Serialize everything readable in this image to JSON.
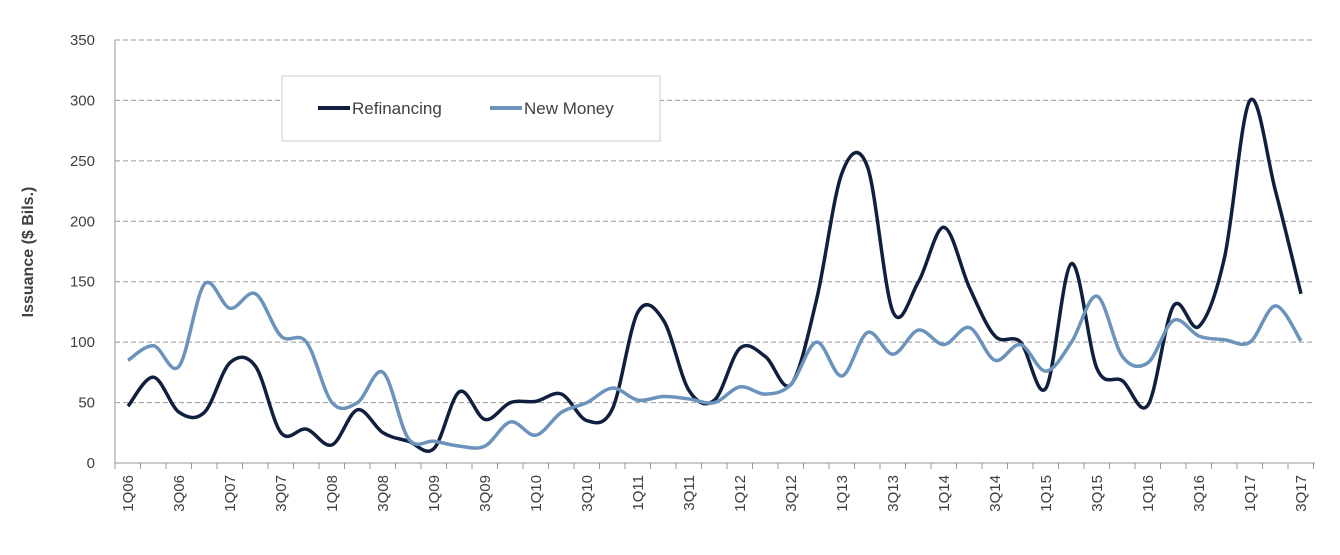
{
  "chart_data": {
    "type": "line",
    "title": "",
    "ylabel": "Issuance ($ Bils.)",
    "xlabel": "",
    "ylim": [
      0,
      350
    ],
    "yticks": [
      0,
      50,
      100,
      150,
      200,
      250,
      300,
      350
    ],
    "grid": true,
    "legend_placement": "top-left",
    "categories": [
      "1Q06",
      "2Q06",
      "3Q06",
      "4Q06",
      "1Q07",
      "2Q07",
      "3Q07",
      "4Q07",
      "1Q08",
      "2Q08",
      "3Q08",
      "4Q08",
      "1Q09",
      "2Q09",
      "3Q09",
      "4Q09",
      "1Q10",
      "2Q10",
      "3Q10",
      "4Q10",
      "1Q11",
      "2Q11",
      "3Q11",
      "4Q11",
      "1Q12",
      "2Q12",
      "3Q12",
      "4Q12",
      "1Q13",
      "2Q13",
      "3Q13",
      "4Q13",
      "1Q14",
      "2Q14",
      "3Q14",
      "4Q14",
      "1Q15",
      "2Q15",
      "3Q15",
      "4Q15",
      "1Q16",
      "2Q16",
      "3Q16",
      "4Q16",
      "1Q17",
      "2Q17",
      "3Q17"
    ],
    "tick_labels": [
      "1Q06",
      "3Q06",
      "1Q07",
      "3Q07",
      "1Q08",
      "3Q08",
      "1Q09",
      "3Q09",
      "1Q10",
      "3Q10",
      "1Q11",
      "3Q11",
      "1Q12",
      "3Q12",
      "1Q13",
      "3Q13",
      "1Q14",
      "3Q14",
      "1Q15",
      "3Q15",
      "1Q16",
      "3Q16",
      "1Q17",
      "3Q17"
    ],
    "series": [
      {
        "name": "Refinancing",
        "color": "#0f1f3d",
        "values": [
          47,
          71,
          42,
          42,
          83,
          80,
          25,
          28,
          15,
          44,
          25,
          18,
          12,
          59,
          36,
          50,
          51,
          57,
          35,
          45,
          125,
          118,
          60,
          52,
          95,
          88,
          65,
          135,
          240,
          245,
          125,
          150,
          195,
          145,
          105,
          100,
          62,
          165,
          78,
          68,
          48,
          130,
          113,
          170,
          300,
          225,
          140
        ]
      },
      {
        "name": "New Money",
        "color": "#6b93bb",
        "values": [
          85,
          97,
          80,
          148,
          128,
          140,
          105,
          100,
          50,
          50,
          75,
          20,
          18,
          14,
          14,
          34,
          23,
          42,
          50,
          62,
          52,
          55,
          53,
          50,
          63,
          57,
          65,
          100,
          72,
          108,
          90,
          110,
          98,
          112,
          85,
          98,
          76,
          100,
          138,
          88,
          83,
          118,
          105,
          102,
          100,
          130,
          101
        ]
      }
    ]
  }
}
